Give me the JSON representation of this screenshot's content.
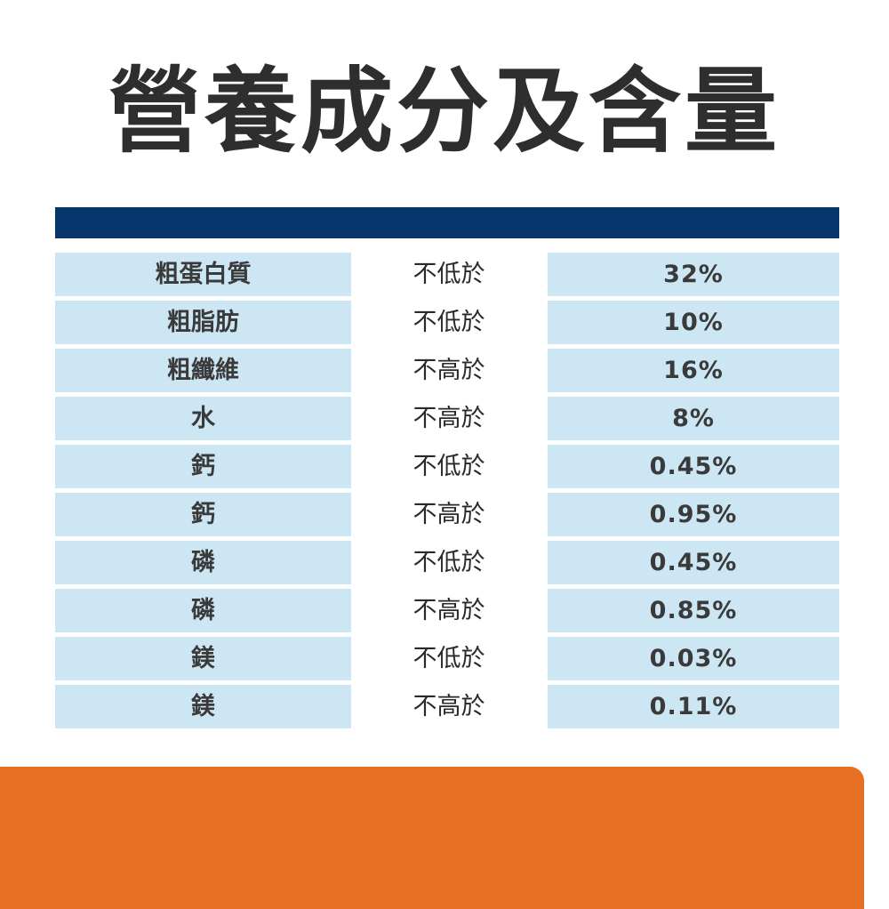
{
  "page": {
    "title": "營養成分及含量"
  },
  "colors": {
    "header_bar": "#06356b",
    "cell_fill": "#cce6f4",
    "footer": "#e87025",
    "title_text": "#2e2e2e"
  },
  "table": {
    "rows": [
      {
        "name": "粗蛋白質",
        "condition": "不低於",
        "value": "32%"
      },
      {
        "name": "粗脂肪",
        "condition": "不低於",
        "value": "10%"
      },
      {
        "name": "粗纖維",
        "condition": "不高於",
        "value": "16%"
      },
      {
        "name": "水",
        "condition": "不高於",
        "value": "8%"
      },
      {
        "name": "鈣",
        "condition": "不低於",
        "value": "0.45%"
      },
      {
        "name": "鈣",
        "condition": "不高於",
        "value": "0.95%"
      },
      {
        "name": "磷",
        "condition": "不低於",
        "value": "0.45%"
      },
      {
        "name": "磷",
        "condition": "不高於",
        "value": "0.85%"
      },
      {
        "name": "鎂",
        "condition": "不低於",
        "value": "0.03%"
      },
      {
        "name": "鎂",
        "condition": "不高於",
        "value": "0.11%"
      }
    ]
  }
}
